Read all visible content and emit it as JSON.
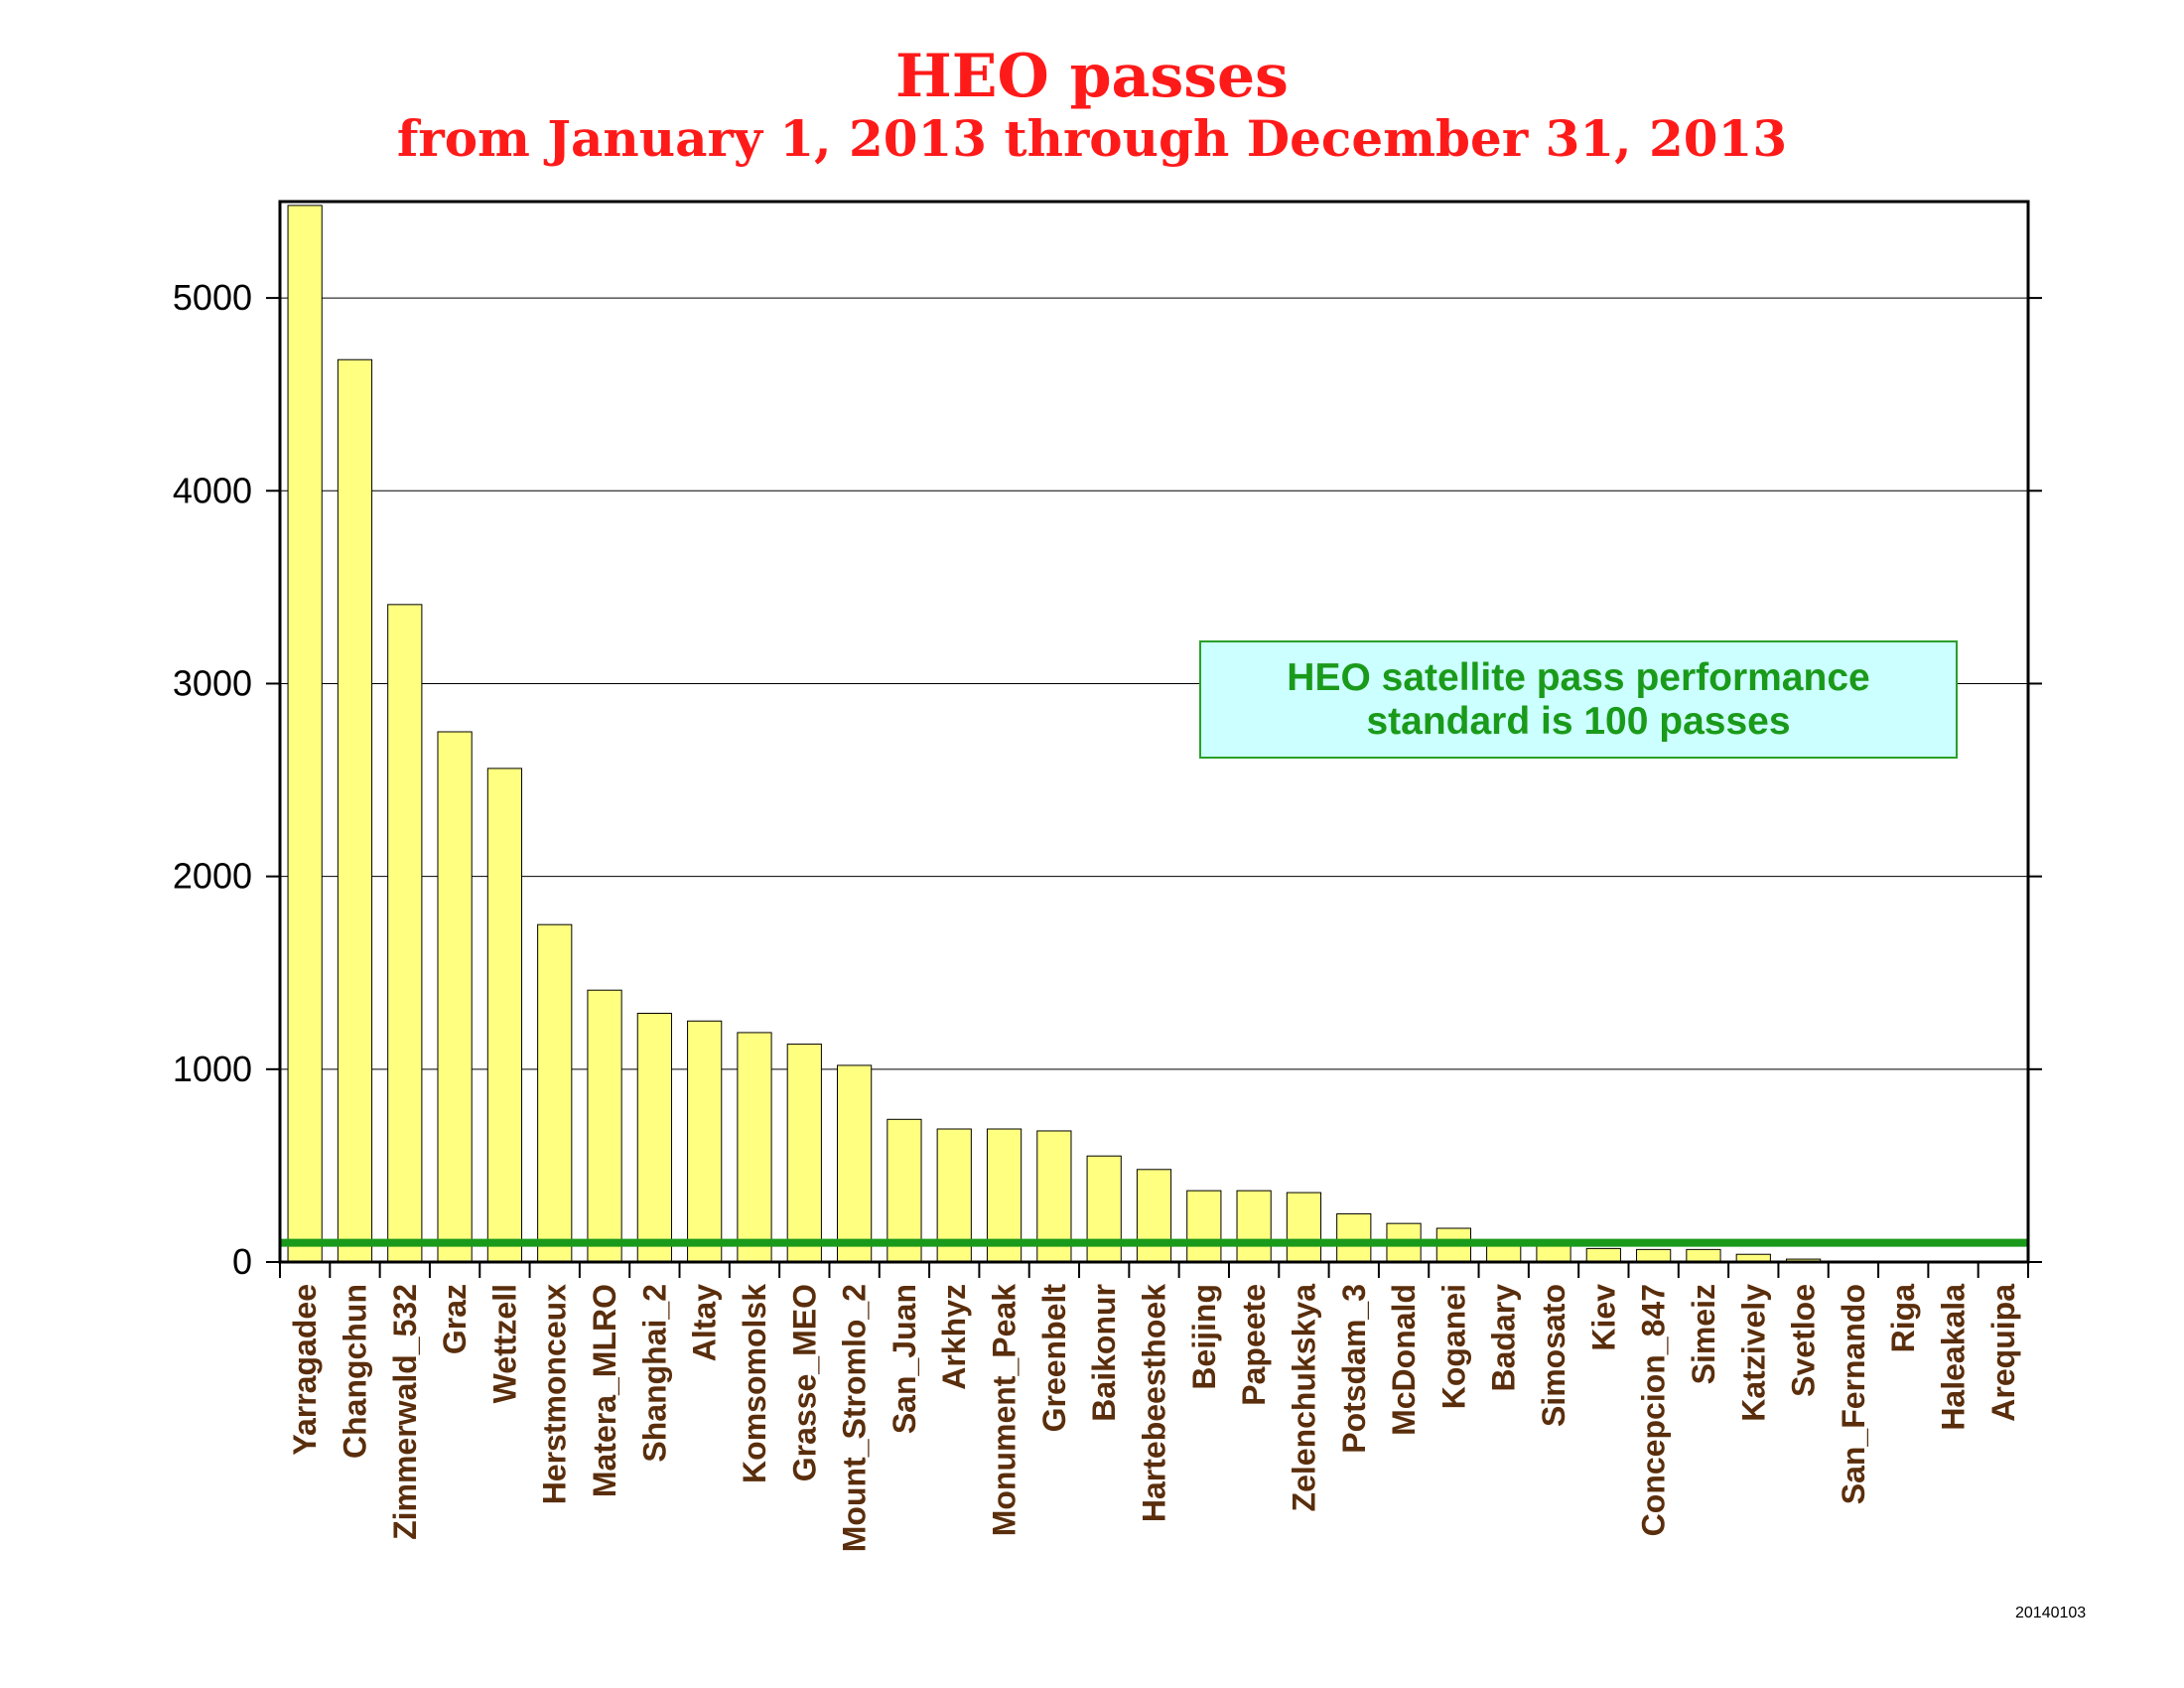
{
  "title": "HEO passes",
  "subtitle": "from January 1, 2013 through December 31, 2013",
  "annotation": {
    "line1": "HEO satellite pass performance",
    "line2": "standard is 100 passes"
  },
  "date_stamp": "20140103",
  "colors": {
    "title": "#ff1a1a",
    "bar_fill": "#ffff80",
    "bar_stroke": "#000000",
    "standard_line": "#1a9a1a",
    "station_label": "#5a2e0c",
    "callout_fill": "#ccffff",
    "callout_text": "#1a9a1a"
  },
  "chart_data": {
    "type": "bar",
    "title": "HEO passes",
    "subtitle": "from January 1, 2013 through December 31, 2013",
    "xlabel": "",
    "ylabel": "",
    "ylim": [
      0,
      5500
    ],
    "yticks": [
      0,
      1000,
      2000,
      3000,
      4000,
      5000
    ],
    "grid": true,
    "reference_line": {
      "value": 100,
      "label": "HEO satellite pass performance standard is 100 passes"
    },
    "categories": [
      "Yarragadee",
      "Changchun",
      "Zimmerwald_532",
      "Graz",
      "Wettzell",
      "Herstmonceux",
      "Matera_MLRO",
      "Shanghai_2",
      "Altay",
      "Komsomolsk",
      "Grasse_MEO",
      "Mount_Stromlo_2",
      "San_Juan",
      "Arkhyz",
      "Monument_Peak",
      "Greenbelt",
      "Baikonur",
      "Hartebeesthoek",
      "Beijing",
      "Papeete",
      "Zelenchukskya",
      "Potsdam_3",
      "McDonald",
      "Koganei",
      "Badary",
      "Simosato",
      "Kiev",
      "Concepcion_847",
      "Simeiz",
      "Katzively",
      "Svetloe",
      "San_Fernando",
      "Riga",
      "Haleakala",
      "Arequipa"
    ],
    "values": [
      5480,
      4680,
      3410,
      2750,
      2560,
      1750,
      1410,
      1290,
      1250,
      1190,
      1130,
      1020,
      740,
      690,
      690,
      680,
      550,
      480,
      370,
      370,
      360,
      250,
      200,
      175,
      100,
      95,
      70,
      65,
      65,
      40,
      15,
      0,
      0,
      0,
      0
    ]
  }
}
